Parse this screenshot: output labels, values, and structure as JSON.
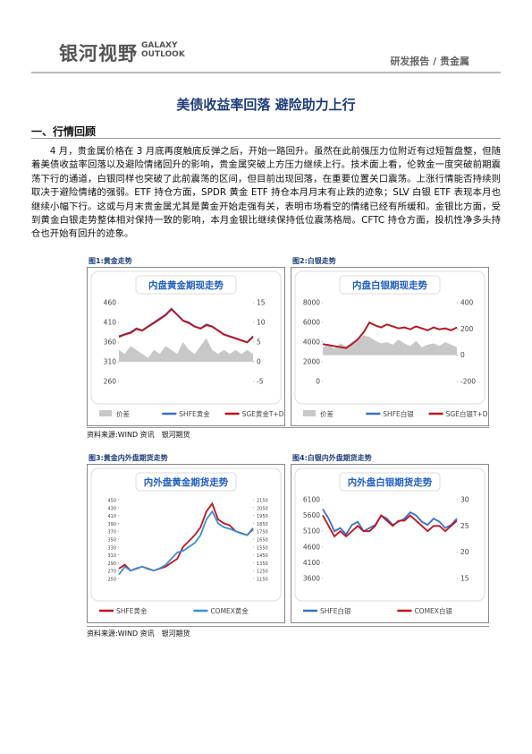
{
  "header": {
    "logo": "银河视野",
    "logo_en_1": "GALAXY",
    "logo_en_2": "OUTLOOK",
    "category": "研发报告 / 贵金属"
  },
  "title": "美债收益率回落 避险助力上行",
  "section": "一、行情回顾",
  "paragraph": "4 月，贵金属价格在 3 月底再度触底反弹之后，开始一路回升。虽然在此前强压力位附近有过短暂盘整，但随着美债收益率回落以及避险情绪回升的影响，贵金属突破上方压力继续上行。技术面上看，伦敦金一度突破前期震荡下行的通道，白银同样也突破了此前震荡的区间，但目前出现回落，在重要位置关口震荡。上涨行情能否持续则取决于避险情绪的强弱。ETF 持仓方面，SPDR 黄金 ETF 持仓本月月末有止跌的迹象；SLV 白银 ETF 表现本月也继续小幅下行。这或与月末贵金属尤其是黄金开始走强有关，表明市场看空的情绪已经有所缓和。金银比方面，受到黄金白银走势整体相对保持一致的影响，本月金银比继续保持低位震荡格局。CFTC 持仓方面，投机性净多头持仓也开始有回升的迹象。",
  "sources": [
    "资料来源:WIND 资讯　银河期货",
    "资料来源:WIND 资讯　银河期货"
  ],
  "figures": [
    {
      "label": "图1:黄金走势",
      "chart": {
        "type": "line",
        "title": "内盘黄金期现走势",
        "ylim": [
          260,
          460
        ],
        "yticks": [
          260,
          310,
          360,
          410,
          460
        ],
        "y2lim": [
          -5,
          15
        ],
        "y2ticks": [
          -5,
          0,
          5,
          10,
          15
        ],
        "series": [
          {
            "name": "价差",
            "color": "#c8c8c8",
            "axis": "y2",
            "style": "area",
            "values": [
              3,
              2,
              4,
              3,
              2,
              1,
              3,
              2,
              4,
              3,
              2,
              5,
              3,
              2,
              4,
              6,
              3,
              2,
              3,
              2,
              3,
              2,
              3,
              2
            ]
          },
          {
            "name": "SHFE黄金",
            "color": "#3a6fc4",
            "values": [
              375,
              380,
              385,
              395,
              390,
              400,
              410,
              420,
              430,
              445,
              430,
              415,
              410,
              400,
              395,
              405,
              400,
              390,
              380,
              375,
              370,
              365,
              360,
              375
            ]
          },
          {
            "name": "SGE黄金T+D",
            "color": "#c0141c",
            "values": [
              373,
              379,
              383,
              393,
              389,
              399,
              408,
              418,
              428,
              443,
              429,
              414,
              408,
              399,
              394,
              403,
              399,
              389,
              379,
              374,
              369,
              364,
              359,
              373
            ]
          }
        ]
      }
    },
    {
      "label": "图2:白银走势",
      "chart": {
        "type": "line",
        "title": "内盘白银期现走势",
        "ylim": [
          0,
          8000
        ],
        "yticks": [
          0,
          2000,
          4000,
          6000,
          8000
        ],
        "y2lim": [
          -200,
          400
        ],
        "y2ticks": [
          -200,
          0,
          200,
          400
        ],
        "series": [
          {
            "name": "价差",
            "color": "#c8c8c8",
            "axis": "y2",
            "style": "area",
            "values": [
              60,
              80,
              50,
              90,
              70,
              100,
              120,
              150,
              140,
              110,
              90,
              100,
              80,
              120,
              90,
              70,
              110,
              60,
              80,
              90,
              70,
              100,
              80,
              60
            ]
          },
          {
            "name": "SHFE白银",
            "color": "#3a6fc4",
            "values": [
              3800,
              3700,
              3600,
              3500,
              3400,
              3800,
              4300,
              5000,
              6000,
              5700,
              5500,
              5800,
              5600,
              5400,
              5500,
              5300,
              5600,
              5400,
              5200,
              5500,
              5300,
              5400,
              5200,
              5500
            ]
          },
          {
            "name": "SGE白银T+D",
            "color": "#c0141c",
            "values": [
              3780,
              3690,
              3580,
              3490,
              3380,
              3790,
              4280,
              4980,
              5980,
              5690,
              5480,
              5790,
              5590,
              5390,
              5480,
              5290,
              5580,
              5390,
              5190,
              5480,
              5290,
              5390,
              5190,
              5480
            ]
          }
        ]
      }
    },
    {
      "label": "图3:黄金内外盘期货走势",
      "chart": {
        "type": "line",
        "title": "内外盘黄金期货走势",
        "ylim": [
          250,
          450
        ],
        "yticks": [
          250,
          270,
          290,
          310,
          330,
          350,
          370,
          390,
          410,
          430,
          450
        ],
        "y2lim": [
          1150,
          2150
        ],
        "y2ticks": [
          1150,
          1250,
          1350,
          1450,
          1550,
          1650,
          1750,
          1850,
          1950,
          2050,
          2150
        ],
        "series": [
          {
            "name": "SHFE黄金",
            "color": "#c0141c",
            "values": [
              275,
              285,
              270,
              275,
              280,
              275,
              270,
              275,
              280,
              290,
              300,
              330,
              345,
              360,
              380,
              420,
              440,
              400,
              390,
              385,
              370,
              365,
              360,
              375
            ]
          },
          {
            "name": "COMEX黄金",
            "color": "#3a8fd4",
            "axis": "y2",
            "values": [
              1200,
              1300,
              1250,
              1280,
              1300,
              1270,
              1250,
              1280,
              1320,
              1400,
              1480,
              1500,
              1550,
              1600,
              1700,
              1900,
              2000,
              1850,
              1800,
              1780,
              1750,
              1720,
              1700,
              1790
            ]
          }
        ]
      }
    },
    {
      "label": "图4:白银内外盘期货走势",
      "chart": {
        "type": "line",
        "title": "内外盘白银期货走势",
        "ylim": [
          3600,
          6100
        ],
        "yticks": [
          3600,
          4100,
          4600,
          5100,
          5600,
          6100
        ],
        "y2lim": [
          15,
          30
        ],
        "y2ticks": [
          15,
          20,
          25,
          30
        ],
        "series": [
          {
            "name": "SHFE白银",
            "color": "#3a6fc4",
            "values": [
              5800,
              5500,
              5100,
              5200,
              5000,
              5300,
              5400,
              5100,
              5200,
              5300,
              5600,
              5500,
              5300,
              5400,
              5500,
              5700,
              5600,
              5400,
              5300,
              5500,
              5400,
              5200,
              5300,
              5500
            ]
          },
          {
            "name": "COMEX白银",
            "color": "#c0141c",
            "axis": "y2",
            "values": [
              27,
              25,
              23,
              24,
              23,
              24,
              25,
              24,
              24,
              25,
              27,
              26,
              25,
              26,
              26,
              27,
              26,
              25,
              24,
              25,
              25,
              24,
              25,
              26
            ]
          }
        ]
      }
    }
  ]
}
